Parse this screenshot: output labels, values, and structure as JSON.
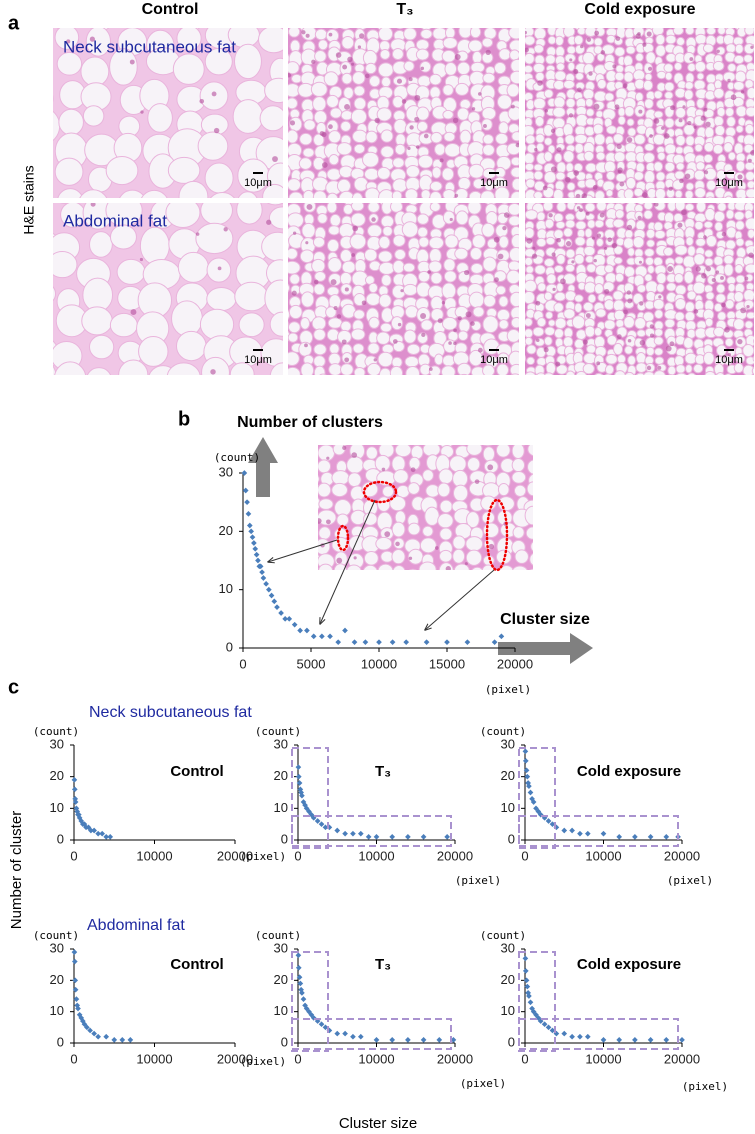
{
  "panel_a": {
    "label": "a",
    "columns": [
      "Control",
      "T₃",
      "Cold exposure"
    ],
    "row_axis_label": "H&E stains",
    "rows": [
      {
        "label": "Neck subcutaneous fat",
        "scale_bars": [
          "10μm",
          "10μm",
          "10μm"
        ]
      },
      {
        "label": "Abdominal fat",
        "scale_bars": [
          "10μm",
          "10μm",
          "10μm"
        ]
      }
    ]
  },
  "panel_b": {
    "label": "b"
  },
  "panel_c": {
    "label": "c",
    "groups": [
      "Neck subcutaneous fat",
      "Abdominal fat"
    ],
    "y_label": "Number of cluster",
    "x_label": "Cluster size"
  },
  "chart_data": [
    {
      "type": "scatter",
      "y_label": "Number of clusters",
      "x_label": "Cluster size",
      "y_unit": "(count)",
      "x_unit": "(pixel)",
      "color": "#4a7ebb",
      "x": [
        100,
        200,
        300,
        400,
        500,
        600,
        700,
        800,
        900,
        1000,
        1100,
        1200,
        1300,
        1400,
        1500,
        1700,
        1900,
        2100,
        2300,
        2500,
        2800,
        3100,
        3400,
        3800,
        4200,
        4700,
        5200,
        5800,
        6400,
        7000,
        7500,
        8200,
        9000,
        10000,
        11000,
        12000,
        13500,
        15000,
        16500,
        18500,
        19000
      ],
      "values": [
        30,
        27,
        25,
        23,
        21,
        20,
        19,
        18,
        17,
        16,
        15,
        14,
        14,
        13,
        12,
        11,
        10,
        9,
        8,
        7,
        6,
        5,
        5,
        4,
        3,
        3,
        2,
        2,
        2,
        1,
        3,
        1,
        1,
        1,
        1,
        1,
        1,
        1,
        1,
        1,
        2
      ],
      "xlim": [
        0,
        20000
      ],
      "ylim": [
        0,
        30
      ],
      "xticks": [
        0,
        5000,
        10000,
        15000,
        20000
      ],
      "yticks": [
        0,
        10,
        20,
        30
      ]
    },
    {
      "type": "scatter",
      "title": "Control",
      "y_unit": "(count)",
      "x_unit": "(pixel)",
      "color": "#4a7ebb",
      "x": [
        50,
        100,
        150,
        200,
        300,
        400,
        500,
        600,
        700,
        900,
        1100,
        1300,
        1500,
        1800,
        2100,
        2500,
        3000,
        3500,
        4000,
        4500
      ],
      "values": [
        19,
        16,
        13,
        12,
        10,
        9,
        8,
        8,
        7,
        6,
        5,
        5,
        4,
        4,
        3,
        3,
        2,
        2,
        1,
        1
      ],
      "xlim": [
        0,
        20000
      ],
      "ylim": [
        0,
        30
      ],
      "xticks": [
        0,
        10000,
        20000
      ],
      "yticks": [
        0,
        10,
        20,
        30
      ]
    },
    {
      "type": "scatter",
      "title": "T₃",
      "y_unit": "(count)",
      "x_unit": "(pixel)",
      "color": "#4a7ebb",
      "x": [
        50,
        100,
        200,
        300,
        400,
        500,
        700,
        900,
        1100,
        1400,
        1700,
        2000,
        2500,
        3000,
        3500,
        4000,
        5000,
        6000,
        7000,
        8000,
        9000,
        10000,
        12000,
        14000,
        16000,
        19000
      ],
      "values": [
        23,
        20,
        18,
        16,
        15,
        14,
        12,
        11,
        10,
        9,
        8,
        7,
        6,
        5,
        4,
        4,
        3,
        2,
        2,
        2,
        1,
        1,
        1,
        1,
        1,
        1
      ],
      "xlim": [
        0,
        20000
      ],
      "ylim": [
        0,
        30
      ],
      "xticks": [
        0,
        10000,
        20000
      ],
      "yticks": [
        0,
        10,
        20,
        30
      ]
    },
    {
      "type": "scatter",
      "title": "Cold exposure",
      "y_unit": "(count)",
      "x_unit": "(pixel)",
      "color": "#4a7ebb",
      "x": [
        50,
        100,
        200,
        300,
        400,
        500,
        700,
        900,
        1100,
        1400,
        1700,
        2000,
        2500,
        3000,
        3500,
        4000,
        5000,
        6000,
        7000,
        8000,
        10000,
        12000,
        14000,
        16000,
        18000,
        19500
      ],
      "values": [
        28,
        25,
        22,
        20,
        18,
        17,
        15,
        13,
        12,
        10,
        9,
        8,
        7,
        6,
        5,
        4,
        3,
        3,
        2,
        2,
        2,
        1,
        1,
        1,
        1,
        1
      ],
      "xlim": [
        0,
        20000
      ],
      "ylim": [
        0,
        30
      ],
      "xticks": [
        0,
        10000,
        20000
      ],
      "yticks": [
        0,
        10,
        20,
        30
      ]
    },
    {
      "type": "scatter",
      "title": "Control",
      "y_unit": "(count)",
      "x_unit": "(pixel)",
      "color": "#4a7ebb",
      "x": [
        50,
        100,
        150,
        200,
        300,
        400,
        500,
        700,
        900,
        1100,
        1300,
        1600,
        2000,
        2500,
        3000,
        4000,
        5000,
        6000,
        7000
      ],
      "values": [
        29,
        26,
        20,
        17,
        14,
        12,
        11,
        9,
        8,
        7,
        6,
        5,
        4,
        3,
        2,
        2,
        1,
        1,
        1
      ],
      "xlim": [
        0,
        20000
      ],
      "ylim": [
        0,
        30
      ],
      "xticks": [
        0,
        10000,
        20000
      ],
      "yticks": [
        0,
        10,
        20,
        30
      ]
    },
    {
      "type": "scatter",
      "title": "T₃",
      "y_unit": "(count)",
      "x_unit": "(pixel)",
      "color": "#4a7ebb",
      "x": [
        50,
        100,
        200,
        300,
        400,
        500,
        700,
        900,
        1100,
        1400,
        1700,
        2000,
        2500,
        3000,
        3500,
        4000,
        5000,
        6000,
        7000,
        8000,
        10000,
        12000,
        14000,
        16000,
        18000,
        19800
      ],
      "values": [
        28,
        24,
        21,
        19,
        17,
        16,
        14,
        12,
        11,
        10,
        9,
        8,
        7,
        6,
        5,
        4,
        3,
        3,
        2,
        2,
        1,
        1,
        1,
        1,
        1,
        1
      ],
      "xlim": [
        0,
        20000
      ],
      "ylim": [
        0,
        30
      ],
      "xticks": [
        0,
        10000,
        20000
      ],
      "yticks": [
        0,
        10,
        20,
        30
      ]
    },
    {
      "type": "scatter",
      "title": "Cold exposure",
      "y_unit": "(count)",
      "x_unit": "(pixel)",
      "color": "#4a7ebb",
      "x": [
        50,
        100,
        200,
        300,
        400,
        500,
        700,
        900,
        1100,
        1400,
        1700,
        2000,
        2500,
        3000,
        3500,
        4000,
        5000,
        6000,
        7000,
        8000,
        10000,
        12000,
        14000,
        16000,
        18000,
        20000
      ],
      "values": [
        27,
        23,
        20,
        18,
        16,
        15,
        13,
        11,
        10,
        9,
        8,
        7,
        6,
        5,
        4,
        3,
        3,
        2,
        2,
        2,
        1,
        1,
        1,
        1,
        1,
        1
      ],
      "xlim": [
        0,
        20000
      ],
      "ylim": [
        0,
        30
      ],
      "xticks": [
        0,
        10000,
        20000
      ],
      "yticks": [
        0,
        10,
        20,
        30
      ]
    }
  ]
}
